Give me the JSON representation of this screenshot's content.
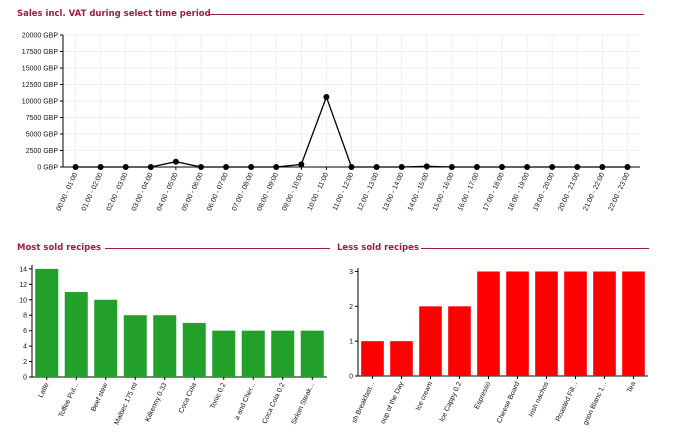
{
  "sections": {
    "sales_title": "Sales incl. VAT during select time period",
    "most_title": "Most sold recipes",
    "less_title": "Less sold recipes"
  },
  "colors": {
    "title": "#9c1c3c",
    "line": "#000000",
    "most_bar": "#22a02a",
    "less_bar": "#ff0000",
    "grid": "#eeeeee"
  },
  "chart_data": [
    {
      "type": "line",
      "title": "Sales incl. VAT during select time period",
      "x": [
        "00:00 - 01:00",
        "01:00 - 02:00",
        "02:00 - 03:00",
        "03:00 - 04:00",
        "04:00 - 05:00",
        "05:00 - 06:00",
        "06:00 - 07:00",
        "07:00 - 08:00",
        "08:00 - 09:00",
        "09:00 - 10:00",
        "10:00 - 11:00",
        "11:00 - 12:00",
        "12:00 - 13:00",
        "13:00 - 14:00",
        "14:00 - 15:00",
        "15:00 - 16:00",
        "16:00 - 17:00",
        "17:00 - 18:00",
        "18:00 - 19:00",
        "19:00 - 20:00",
        "20:00 - 21:00",
        "21:00 - 22:00",
        "22:00 - 23:00"
      ],
      "series": [
        {
          "values": [
            0,
            0,
            0,
            0,
            800,
            0,
            0,
            0,
            0,
            400,
            10600,
            0,
            0,
            0,
            100,
            0,
            0,
            0,
            0,
            0,
            0,
            0,
            0
          ]
        }
      ],
      "yticks": [
        "0 GBP",
        "2500 GBP",
        "5000 GBP",
        "7500 GBP",
        "10000 GBP",
        "12500 GBP",
        "15000 GBP",
        "17500 GBP",
        "20000 GBP"
      ],
      "ylim": [
        0,
        20000
      ],
      "grid": true
    },
    {
      "type": "bar",
      "title": "Most sold recipes",
      "categories": [
        "Latte",
        "Toffee Put...",
        "Beef stew",
        "Malbec 175 ml",
        "Kilkenny 0.33",
        "Coca Cola",
        "Tonic 0.2",
        "a and Cher...",
        "Coca Cola 0.2",
        "Sirloin Steak..."
      ],
      "values": [
        14,
        11,
        10,
        8,
        8,
        7,
        6,
        6,
        6,
        6
      ],
      "yticks": [
        "0",
        "2",
        "4",
        "6",
        "8",
        "10",
        "12",
        "14"
      ],
      "ylim": [
        0,
        14.5
      ]
    },
    {
      "type": "bar",
      "title": "Less sold recipes",
      "categories": [
        "sh Breakfast...",
        "oup of the Day",
        "Ice cream",
        "Ice Cappy 0.2",
        "Espresso",
        "Cheese Board",
        "Irish nachos",
        "Roasted Fill...",
        "gnon Blanc 1...",
        "Tea"
      ],
      "values": [
        1,
        1,
        2,
        2,
        3,
        3,
        3,
        3,
        3,
        3
      ],
      "yticks": [
        "0",
        "1",
        "2",
        "3"
      ],
      "ylim": [
        0,
        3.1
      ]
    }
  ]
}
